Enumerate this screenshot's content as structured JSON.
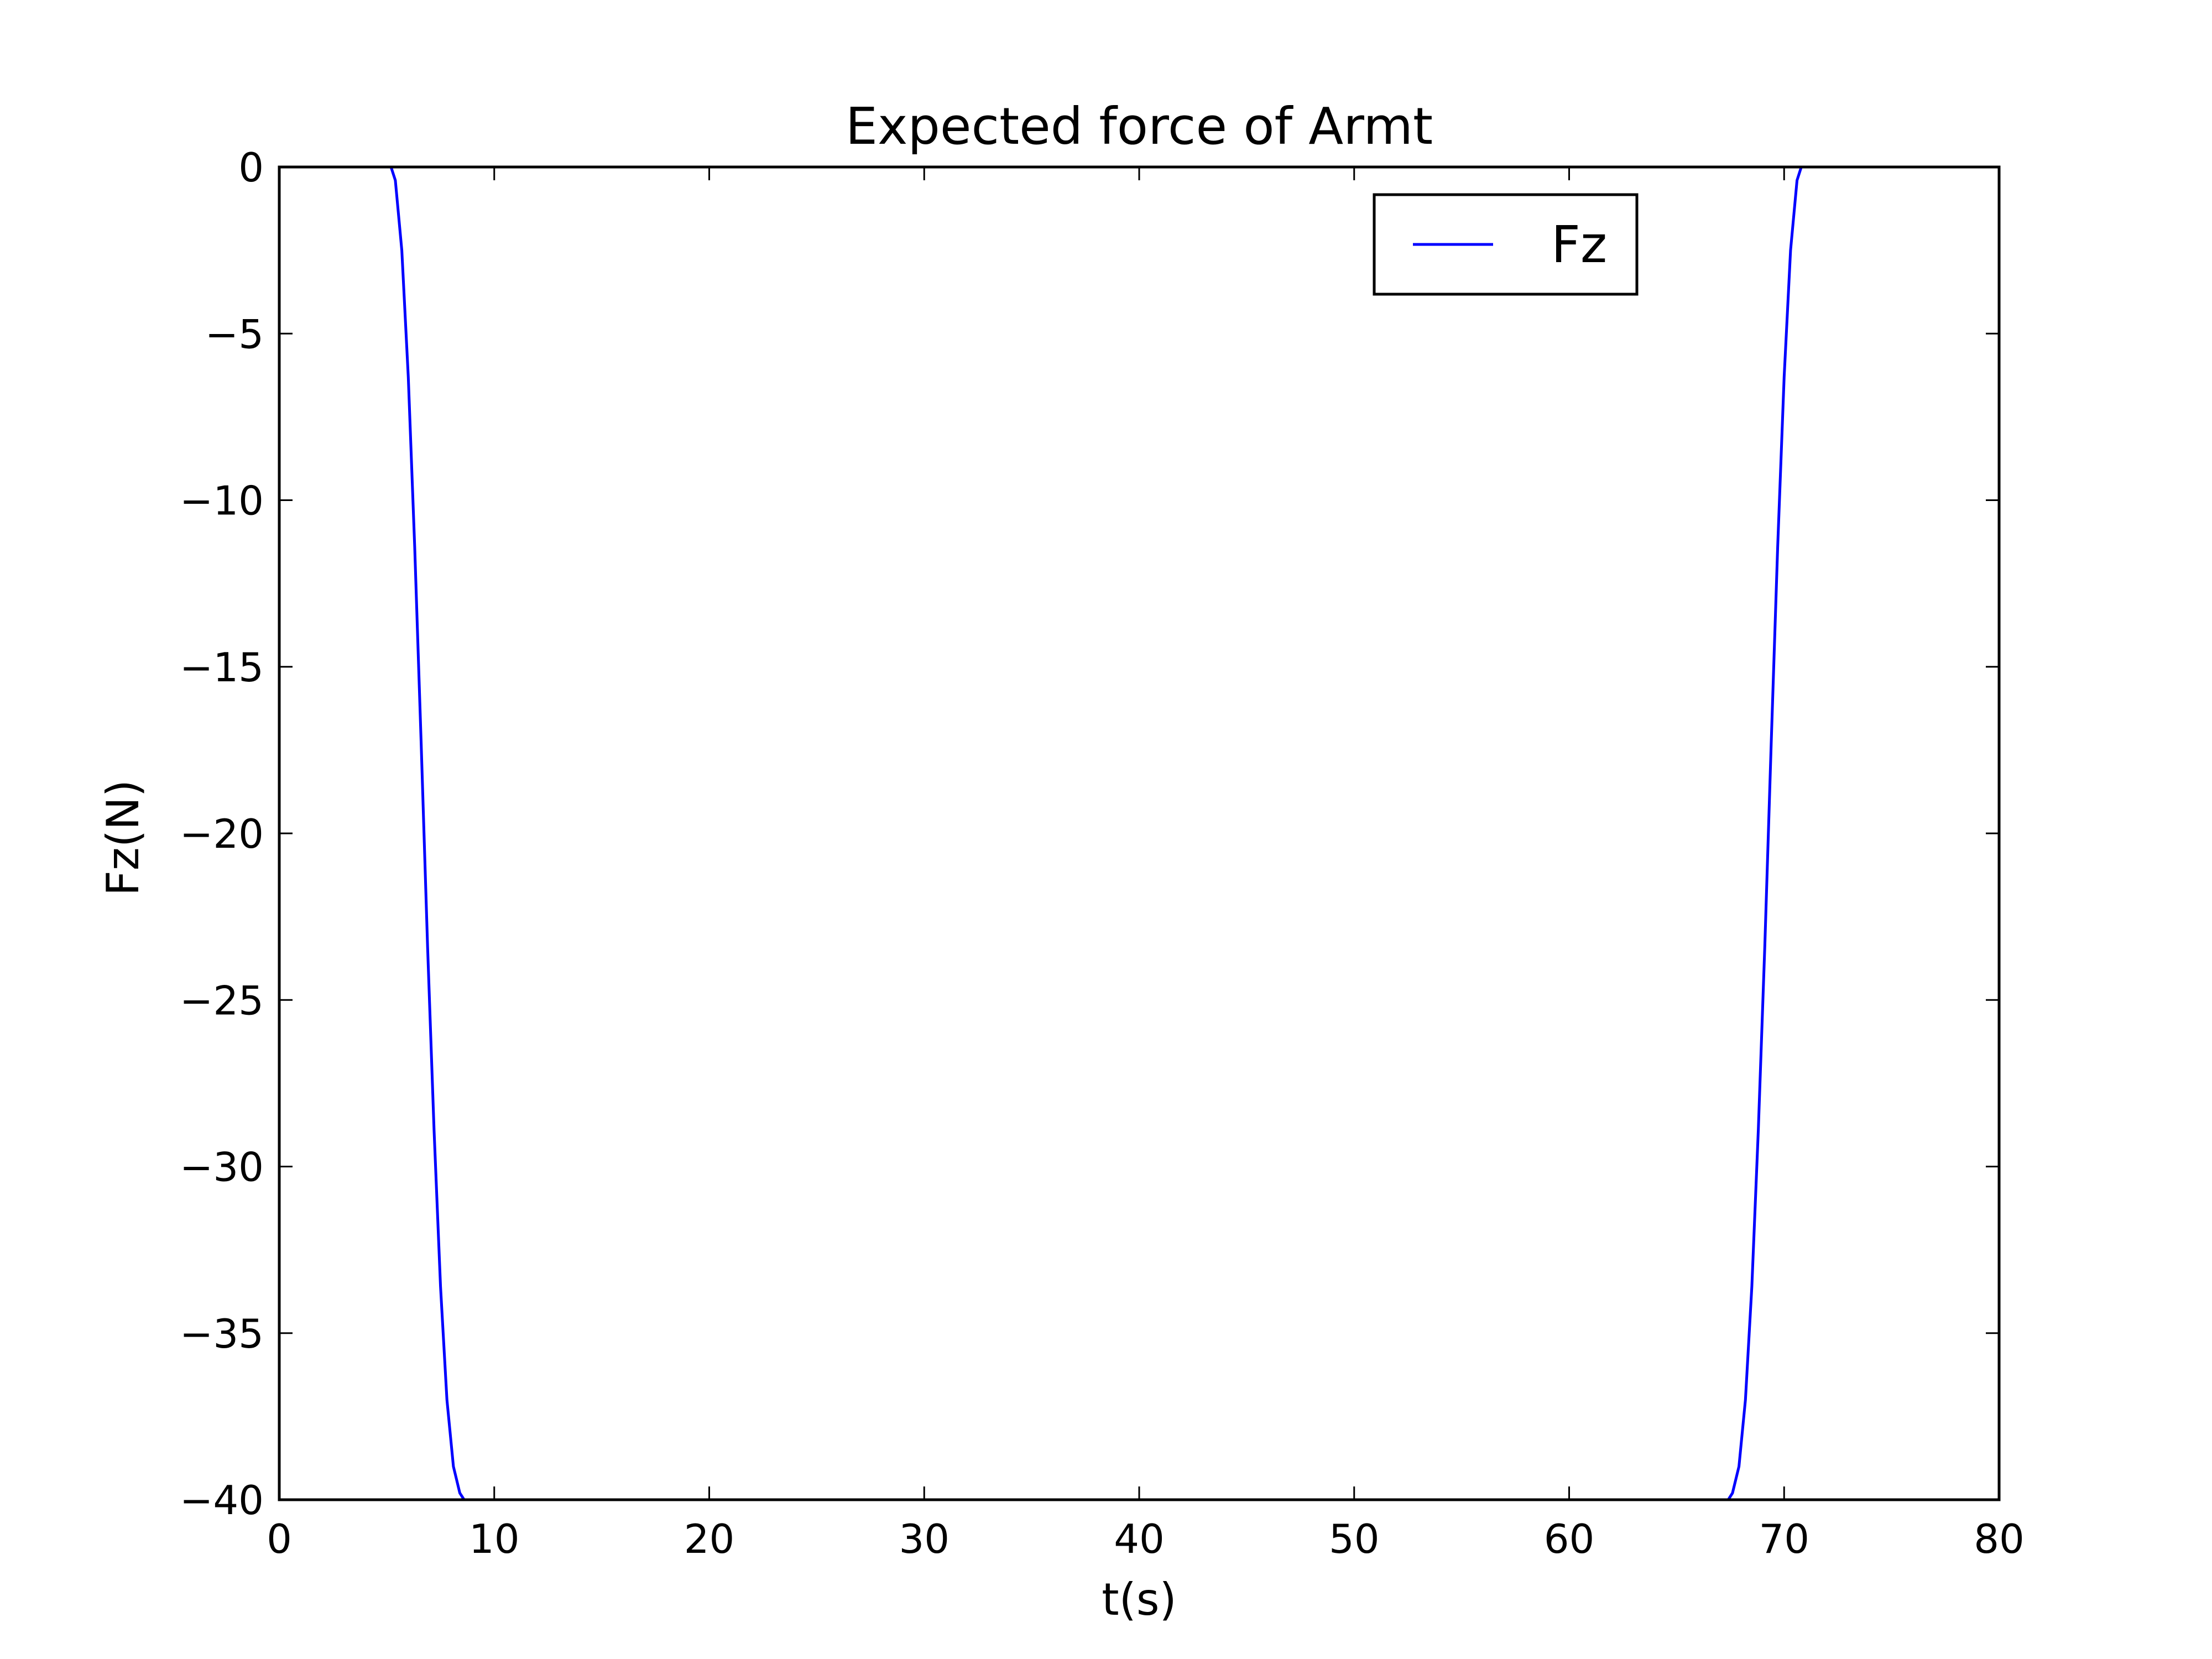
{
  "chart_data": {
    "type": "line",
    "title": "Expected force of Armt",
    "xlabel": "t(s)",
    "ylabel": "Fz(N)",
    "xlim": [
      0,
      80
    ],
    "ylim": [
      -40,
      0
    ],
    "xticks": [
      0,
      10,
      20,
      30,
      40,
      50,
      60,
      70,
      80
    ],
    "yticks": [
      0,
      -5,
      -10,
      -15,
      -20,
      -25,
      -30,
      -35,
      -40
    ],
    "xtick_labels": [
      "0",
      "10",
      "20",
      "30",
      "40",
      "50",
      "60",
      "70",
      "80"
    ],
    "ytick_labels": [
      "0",
      "−5",
      "−10",
      "−15",
      "−20",
      "−25",
      "−30",
      "−35",
      "−40"
    ],
    "grid": false,
    "legend": {
      "position": "upper-right",
      "entries": [
        "Fz"
      ]
    },
    "series": [
      {
        "name": "Fz",
        "color": "#0000ff",
        "x": [
          0,
          5.2,
          5.4,
          5.7,
          6.0,
          6.3,
          6.6,
          6.9,
          7.2,
          7.5,
          7.8,
          8.1,
          8.4,
          8.6,
          8.8,
          67.2,
          67.4,
          67.6,
          67.9,
          68.2,
          68.5,
          68.8,
          69.1,
          69.4,
          69.7,
          70.0,
          70.3,
          70.6,
          70.8,
          80
        ],
        "y": [
          0,
          0,
          -0.4,
          -2.5,
          -6.3,
          -11.4,
          -17.3,
          -23.4,
          -28.9,
          -33.6,
          -37.0,
          -39.0,
          -39.8,
          -40,
          -40,
          -40,
          -40,
          -39.8,
          -39.0,
          -37.0,
          -33.6,
          -28.9,
          -23.4,
          -17.3,
          -11.4,
          -6.3,
          -2.5,
          -0.4,
          0,
          0
        ]
      }
    ]
  }
}
